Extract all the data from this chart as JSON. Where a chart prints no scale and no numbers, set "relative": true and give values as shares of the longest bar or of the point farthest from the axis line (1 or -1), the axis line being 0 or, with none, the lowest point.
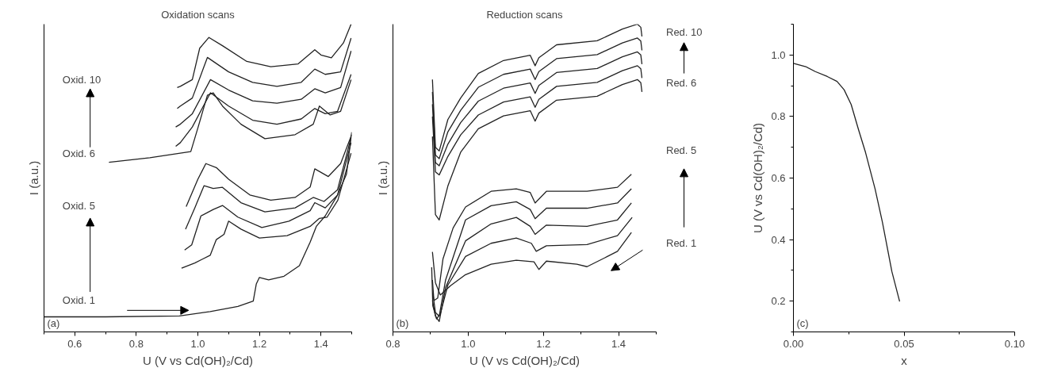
{
  "chart_data": [
    {
      "type": "line",
      "title": "Oxidation scans",
      "xlabel": "U (V vs Cd(OH)₂/Cd)",
      "ylabel": "I (a.u.)",
      "relative": true,
      "tick_labels": "x",
      "xlim": [
        0.5,
        1.5
      ],
      "xticks": [
        {
          "value": 0.5,
          "label": null
        },
        {
          "value": 0.6,
          "label": "0.6"
        },
        {
          "value": 0.7,
          "label": null
        },
        {
          "value": 0.8,
          "label": "0.8"
        },
        {
          "value": 0.9,
          "label": null
        },
        {
          "value": 1.0,
          "label": "1.0"
        },
        {
          "value": 1.1,
          "label": null
        },
        {
          "value": 1.2,
          "label": "1.2"
        },
        {
          "value": 1.3,
          "label": null
        },
        {
          "value": 1.4,
          "label": "1.4"
        },
        {
          "value": 1.5,
          "label": null
        }
      ],
      "annotations": [
        "Oxid. 10",
        "Oxid. 6",
        "Oxid. 5",
        "Oxid. 1",
        "(a)"
      ],
      "series": [
        {
          "color": "#222222",
          "x": [
            0.5,
            0.7,
            0.94,
            1.04,
            1.13,
            1.18,
            1.19,
            1.2,
            1.23,
            1.28,
            1.33,
            1.365,
            1.385,
            1.414,
            1.454,
            1.483,
            1.5
          ],
          "values": [
            0.049,
            0.049,
            0.052,
            0.066,
            0.083,
            0.1,
            0.156,
            0.177,
            0.169,
            0.181,
            0.215,
            0.292,
            0.343,
            0.377,
            0.445,
            0.513,
            0.649
          ]
        },
        {
          "color": "#222222",
          "x": [
            0.947,
            0.99,
            1.04,
            1.06,
            1.085,
            1.1,
            1.14,
            1.2,
            1.29,
            1.365,
            1.395,
            1.42,
            1.455,
            1.498
          ],
          "values": [
            0.207,
            0.224,
            0.249,
            0.3,
            0.317,
            0.36,
            0.334,
            0.305,
            0.313,
            0.343,
            0.369,
            0.373,
            0.428,
            0.581
          ]
        },
        {
          "color": "#222222",
          "x": [
            0.957,
            0.98,
            1.01,
            1.05,
            1.08,
            1.13,
            1.208,
            1.296,
            1.365,
            1.38,
            1.414,
            1.454,
            1.498
          ],
          "values": [
            0.266,
            0.283,
            0.377,
            0.398,
            0.411,
            0.373,
            0.339,
            0.36,
            0.394,
            0.42,
            0.403,
            0.445,
            0.615
          ]
        },
        {
          "color": "#222222",
          "x": [
            0.96,
            0.99,
            1.02,
            1.05,
            1.08,
            1.14,
            1.218,
            1.316,
            1.375,
            1.41,
            1.454,
            1.498
          ],
          "values": [
            0.334,
            0.403,
            0.475,
            0.466,
            0.47,
            0.42,
            0.39,
            0.403,
            0.437,
            0.424,
            0.462,
            0.632
          ]
        },
        {
          "color": "#222222",
          "x": [
            0.962,
            1.0,
            1.026,
            1.06,
            1.1,
            1.169,
            1.237,
            1.316,
            1.365,
            1.38,
            1.424,
            1.464,
            1.5
          ],
          "values": [
            0.407,
            0.496,
            0.547,
            0.534,
            0.496,
            0.445,
            0.428,
            0.437,
            0.471,
            0.53,
            0.505,
            0.547,
            0.641
          ]
        },
        {
          "color": "#222222",
          "x": [
            0.711,
            0.844,
            0.977,
            1.001,
            1.031,
            1.05,
            1.08,
            1.14,
            1.218,
            1.316,
            1.375,
            1.395,
            1.43,
            1.464,
            1.498
          ],
          "values": [
            0.551,
            0.566,
            0.586,
            0.666,
            0.769,
            0.777,
            0.734,
            0.675,
            0.628,
            0.641,
            0.675,
            0.734,
            0.705,
            0.717,
            0.82
          ]
        },
        {
          "color": "#222222",
          "x": [
            0.928,
            0.943,
            0.982,
            1.041,
            1.1,
            1.178,
            1.257,
            1.336,
            1.38,
            1.414,
            1.454,
            1.498
          ],
          "values": [
            0.603,
            0.615,
            0.666,
            0.777,
            0.734,
            0.688,
            0.675,
            0.692,
            0.726,
            0.709,
            0.717,
            0.837
          ]
        },
        {
          "color": "#222222",
          "x": [
            0.928,
            0.943,
            0.982,
            1.041,
            1.1,
            1.178,
            1.257,
            1.336,
            1.38,
            1.414,
            1.464,
            1.498
          ],
          "values": [
            0.666,
            0.675,
            0.709,
            0.82,
            0.786,
            0.751,
            0.743,
            0.756,
            0.79,
            0.777,
            0.794,
            0.913
          ]
        },
        {
          "color": "#222222",
          "x": [
            0.933,
            0.943,
            0.982,
            1.031,
            1.1,
            1.178,
            1.257,
            1.336,
            1.38,
            1.414,
            1.464,
            1.498
          ],
          "values": [
            0.726,
            0.734,
            0.76,
            0.892,
            0.845,
            0.811,
            0.798,
            0.811,
            0.854,
            0.837,
            0.845,
            0.955
          ]
        },
        {
          "color": "#222222",
          "x": [
            0.933,
            0.943,
            0.982,
            1.006,
            1.036,
            1.08,
            1.159,
            1.237,
            1.326,
            1.38,
            1.4,
            1.434,
            1.473,
            1.498
          ],
          "values": [
            0.794,
            0.798,
            0.82,
            0.922,
            0.957,
            0.93,
            0.879,
            0.862,
            0.871,
            0.917,
            0.9,
            0.891,
            0.939,
            1.0
          ]
        }
      ]
    },
    {
      "type": "line",
      "title": "Reduction scans",
      "xlabel": "U (V vs Cd(OH)₂/Cd)",
      "ylabel": "I (a.u.)",
      "relative": true,
      "tick_labels": "x",
      "xlim": [
        0.8,
        1.5
      ],
      "xticks": [
        {
          "value": 0.8,
          "label": "0.8"
        },
        {
          "value": 0.9,
          "label": null
        },
        {
          "value": 1.0,
          "label": "1.0"
        },
        {
          "value": 1.1,
          "label": null
        },
        {
          "value": 1.2,
          "label": "1.2"
        },
        {
          "value": 1.3,
          "label": null
        },
        {
          "value": 1.4,
          "label": "1.4"
        },
        {
          "value": 1.5,
          "label": null
        }
      ],
      "annotations": [
        "Red. 10",
        "Red. 6",
        "Red. 5",
        "Red. 1",
        "(b)"
      ],
      "series": [
        {
          "color": "#222222",
          "x": [
            0.905,
            0.913,
            0.926,
            0.953,
            0.993,
            1.061,
            1.128,
            1.175,
            1.188,
            1.208,
            1.289,
            1.316,
            1.37,
            1.397,
            1.434
          ],
          "values": [
            0.26,
            0.16,
            0.12,
            0.15,
            0.186,
            0.22,
            0.233,
            0.228,
            0.203,
            0.23,
            0.22,
            0.212,
            0.245,
            0.262,
            0.323
          ]
        },
        {
          "color": "#222222",
          "x": [
            0.903,
            0.906,
            0.916,
            0.926,
            0.946,
            0.993,
            1.061,
            1.128,
            1.168,
            1.181,
            1.208,
            1.316,
            1.397,
            1.436
          ],
          "values": [
            0.21,
            0.085,
            0.042,
            0.059,
            0.152,
            0.245,
            0.288,
            0.305,
            0.288,
            0.262,
            0.28,
            0.284,
            0.313,
            0.372
          ]
        },
        {
          "color": "#222222",
          "x": [
            0.905,
            0.913,
            0.923,
            0.94,
            0.993,
            1.061,
            1.128,
            1.165,
            1.178,
            1.208,
            1.316,
            1.397,
            1.434
          ],
          "values": [
            0.102,
            0.051,
            0.034,
            0.144,
            0.296,
            0.351,
            0.372,
            0.343,
            0.317,
            0.347,
            0.343,
            0.364,
            0.419
          ]
        },
        {
          "color": "#222222",
          "x": [
            0.906,
            0.913,
            0.923,
            0.94,
            0.993,
            1.061,
            1.128,
            1.165,
            1.178,
            1.208,
            1.316,
            1.397,
            1.434
          ],
          "values": [
            0.127,
            0.063,
            0.051,
            0.169,
            0.364,
            0.41,
            0.423,
            0.398,
            0.368,
            0.402,
            0.402,
            0.419,
            0.465
          ]
        },
        {
          "color": "#222222",
          "x": [
            0.905,
            0.909,
            0.919,
            0.933,
            0.96,
            0.993,
            1.061,
            1.128,
            1.165,
            1.178,
            1.208,
            1.316,
            1.397,
            1.434
          ],
          "values": [
            0.169,
            0.102,
            0.11,
            0.237,
            0.338,
            0.406,
            0.457,
            0.465,
            0.453,
            0.419,
            0.457,
            0.457,
            0.47,
            0.512
          ]
        },
        {
          "color": "#222222",
          "x": [
            0.905,
            0.913,
            0.923,
            0.946,
            0.98,
            1.027,
            1.094,
            1.165,
            1.178,
            1.188,
            1.235,
            1.343,
            1.41,
            1.45,
            1.459,
            1.462
          ],
          "values": [
            0.635,
            0.381,
            0.364,
            0.474,
            0.584,
            0.66,
            0.702,
            0.719,
            0.685,
            0.711,
            0.753,
            0.766,
            0.804,
            0.82,
            0.81,
            0.78
          ]
        },
        {
          "color": "#222222",
          "x": [
            0.905,
            0.913,
            0.923,
            0.946,
            0.98,
            1.027,
            1.094,
            1.165,
            1.178,
            1.188,
            1.235,
            1.343,
            1.41,
            1.45,
            1.459,
            1.462
          ],
          "values": [
            0.7,
            0.52,
            0.51,
            0.57,
            0.64,
            0.705,
            0.747,
            0.764,
            0.73,
            0.756,
            0.798,
            0.811,
            0.849,
            0.865,
            0.855,
            0.825
          ]
        },
        {
          "color": "#222222",
          "x": [
            0.905,
            0.913,
            0.923,
            0.946,
            0.98,
            1.027,
            1.094,
            1.165,
            1.178,
            1.188,
            1.235,
            1.343,
            1.41,
            1.45,
            1.459,
            1.462
          ],
          "values": [
            0.74,
            0.55,
            0.54,
            0.61,
            0.68,
            0.75,
            0.792,
            0.809,
            0.775,
            0.801,
            0.843,
            0.856,
            0.894,
            0.91,
            0.9,
            0.87
          ]
        },
        {
          "color": "#222222",
          "x": [
            0.905,
            0.913,
            0.923,
            0.946,
            0.98,
            1.027,
            1.094,
            1.165,
            1.178,
            1.188,
            1.235,
            1.343,
            1.41,
            1.45,
            1.459,
            1.462
          ],
          "values": [
            0.78,
            0.575,
            0.563,
            0.65,
            0.72,
            0.795,
            0.837,
            0.854,
            0.82,
            0.846,
            0.888,
            0.901,
            0.939,
            0.955,
            0.945,
            0.915
          ]
        },
        {
          "color": "#222222",
          "x": [
            0.905,
            0.913,
            0.923,
            0.946,
            0.98,
            1.027,
            1.094,
            1.165,
            1.178,
            1.188,
            1.235,
            1.343,
            1.41,
            1.45,
            1.459,
            1.462
          ],
          "values": [
            0.82,
            0.6,
            0.588,
            0.69,
            0.76,
            0.84,
            0.882,
            0.899,
            0.865,
            0.891,
            0.933,
            0.946,
            0.984,
            1.0,
            0.99,
            0.96
          ]
        }
      ]
    },
    {
      "type": "line",
      "xlabel": "x",
      "ylabel": "U (V vs Cd(OH)₂/Cd)",
      "xlim": [
        0,
        0.1
      ],
      "ylim": [
        0.1,
        1.1
      ],
      "xticks": [
        {
          "value": 0,
          "label": "0.00"
        },
        {
          "value": 0.025,
          "label": null
        },
        {
          "value": 0.05,
          "label": "0.05"
        },
        {
          "value": 0.075,
          "label": null
        },
        {
          "value": 0.1,
          "label": "0.10"
        }
      ],
      "yticks": [
        {
          "value": 0.1,
          "label": null
        },
        {
          "value": 0.2,
          "label": "0.2"
        },
        {
          "value": 0.3,
          "label": null
        },
        {
          "value": 0.4,
          "label": "0.4"
        },
        {
          "value": 0.5,
          "label": null
        },
        {
          "value": 0.6,
          "label": "0.6"
        },
        {
          "value": 0.7,
          "label": null
        },
        {
          "value": 0.8,
          "label": "0.8"
        },
        {
          "value": 0.9,
          "label": null
        },
        {
          "value": 1.0,
          "label": "1.0"
        },
        {
          "value": 1.1,
          "label": null
        }
      ],
      "annotations": [
        "(c)"
      ],
      "series": [
        {
          "color": "#222222",
          "x": [
            0,
            0.0056,
            0.0099,
            0.0153,
            0.0197,
            0.0229,
            0.0261,
            0.0294,
            0.0326,
            0.0369,
            0.0402,
            0.0445,
            0.048
          ],
          "values": [
            0.973,
            0.962,
            0.946,
            0.93,
            0.914,
            0.887,
            0.839,
            0.758,
            0.683,
            0.565,
            0.457,
            0.296,
            0.199
          ]
        }
      ]
    }
  ]
}
